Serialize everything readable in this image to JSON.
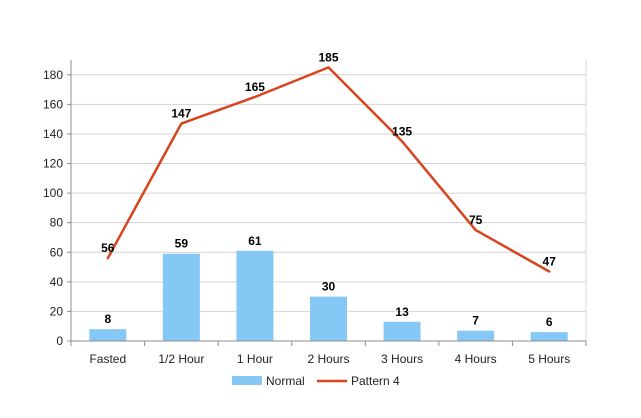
{
  "chart_data": {
    "type": "bar",
    "categories": [
      "Fasted",
      "1/2 Hour",
      "1 Hour",
      "2 Hours",
      "3 Hours",
      "4 Hours",
      "5 Hours"
    ],
    "series": [
      {
        "name": "Normal",
        "type": "bar",
        "values": [
          8,
          59,
          61,
          30,
          13,
          7,
          6
        ],
        "color": "#86C8F5"
      },
      {
        "name": "Pattern 4",
        "type": "line",
        "values": [
          56,
          147,
          165,
          185,
          135,
          75,
          47
        ],
        "color": "#D9441F"
      }
    ],
    "title": "",
    "xlabel": "",
    "ylabel": "",
    "ylim": [
      0,
      190
    ],
    "yticks": [
      0,
      20,
      40,
      60,
      80,
      100,
      120,
      140,
      160,
      180
    ],
    "grid": true,
    "legend": "bottom",
    "data_labels": true
  },
  "colors": {
    "grid": "#D4D4D4",
    "axis": "#8C8C8C",
    "background": "#FFFFFF"
  }
}
